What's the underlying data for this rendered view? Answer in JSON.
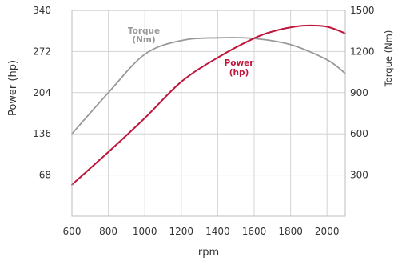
{
  "chart_data": {
    "type": "line",
    "xlabel": "rpm",
    "ylabel": "Power (hp)",
    "y2label": "Torque (Nm)",
    "xlim": [
      600,
      2100
    ],
    "xticks": [
      600,
      800,
      1000,
      1200,
      1400,
      1600,
      1800,
      2000
    ],
    "ylim": [
      0,
      340
    ],
    "yticks": [
      68,
      136,
      204,
      272,
      340
    ],
    "y2lim": [
      0,
      1500
    ],
    "y2ticks": [
      300,
      600,
      900,
      1200,
      1500
    ],
    "grid": true,
    "series": [
      {
        "name": "Power",
        "unit": "(hp)",
        "axis": "left",
        "color": "#c0163c",
        "x": [
          600,
          800,
          1000,
          1200,
          1400,
          1600,
          1700,
          1800,
          1900,
          2000,
          2100
        ],
        "y": [
          52,
          106,
          162,
          222,
          262,
          294,
          305,
          312,
          315,
          313,
          302
        ]
      },
      {
        "name": "Torque",
        "unit": "(Nm)",
        "axis": "right",
        "color": "#999999",
        "x": [
          600,
          800,
          1000,
          1200,
          1400,
          1600,
          1800,
          2000,
          2100
        ],
        "y": [
          600,
          900,
          1180,
          1280,
          1300,
          1295,
          1250,
          1140,
          1040
        ]
      }
    ]
  }
}
